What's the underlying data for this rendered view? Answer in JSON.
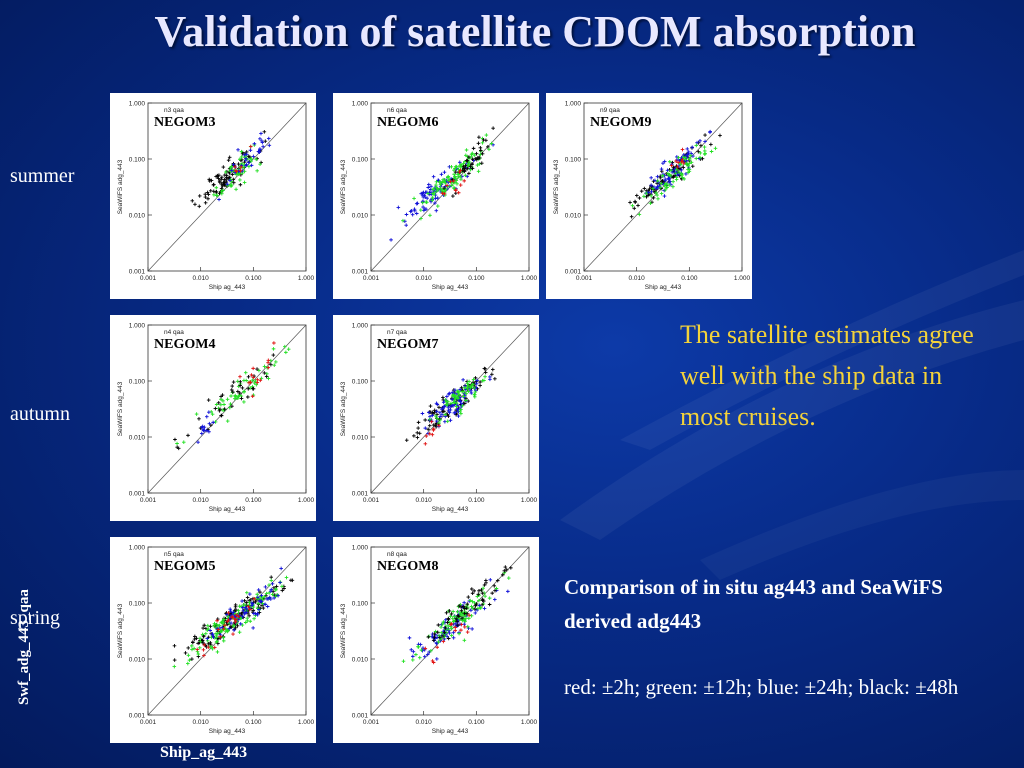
{
  "slide": {
    "title": "Validation of satellite CDOM absorption",
    "seasons": {
      "summer": "summer",
      "autumn": "autumn",
      "spring": "spring"
    },
    "conclusion": "The satellite estimates agree well with the ship data in most cruises.",
    "comparison_title": "Comparison of in situ ag443 and SeaWiFS derived adg443",
    "legend_text": "red: ±2h; green: ±12h; blue: ±24h; black: ±48h",
    "axis_y_label": "Swf_adg_443_qaa",
    "axis_x_label": "Ship_ag_443",
    "colors": {
      "background": "#072a86",
      "highlight": "#f3d23a",
      "red": "#e01010",
      "green": "#22e022",
      "blue": "#1010d8",
      "black": "#000000"
    }
  },
  "chart_data": [
    {
      "type": "scatter",
      "label": "NEGOM3",
      "subtitle": "n3 qaa",
      "season": "summer",
      "xlabel": "Ship ag_443",
      "ylabel": "SeaWiFS adg_443",
      "xscale": "log",
      "yscale": "log",
      "xlim": [
        0.001,
        1.0
      ],
      "ylim": [
        0.001,
        1.0
      ],
      "xticks": [
        "0.001",
        "0.010",
        "0.100",
        "1.000"
      ],
      "yticks": [
        "0.001",
        "0.010",
        "0.100",
        "1.000"
      ],
      "series": [
        {
          "name": "black",
          "color": "#000000",
          "center": [
            0.03,
            0.045
          ],
          "spread": [
            0.28,
            0.26
          ],
          "n": 90
        },
        {
          "name": "green",
          "color": "#22e022",
          "center": [
            0.05,
            0.06
          ],
          "spread": [
            0.2,
            0.2
          ],
          "n": 60
        },
        {
          "name": "blue",
          "color": "#1010d8",
          "center": [
            0.07,
            0.09
          ],
          "spread": [
            0.22,
            0.25
          ],
          "n": 35
        },
        {
          "name": "red",
          "color": "#e01010",
          "center": [
            0.06,
            0.07
          ],
          "spread": [
            0.1,
            0.1
          ],
          "n": 6
        }
      ]
    },
    {
      "type": "scatter",
      "label": "NEGOM6",
      "subtitle": "n6 qaa",
      "season": "summer",
      "xlabel": "Ship ag_443",
      "ylabel": "SeaWiFS adg_443",
      "xscale": "log",
      "yscale": "log",
      "xlim": [
        0.001,
        1.0
      ],
      "ylim": [
        0.001,
        1.0
      ],
      "xticks": [
        "0.001",
        "0.010",
        "0.100",
        "1.000"
      ],
      "yticks": [
        "0.001",
        "0.010",
        "0.100",
        "1.000"
      ],
      "series": [
        {
          "name": "blue",
          "color": "#1010d8",
          "center": [
            0.02,
            0.03
          ],
          "spread": [
            0.35,
            0.3
          ],
          "n": 90
        },
        {
          "name": "green",
          "color": "#22e022",
          "center": [
            0.04,
            0.05
          ],
          "spread": [
            0.3,
            0.3
          ],
          "n": 110
        },
        {
          "name": "black",
          "color": "#000000",
          "center": [
            0.08,
            0.1
          ],
          "spread": [
            0.2,
            0.25
          ],
          "n": 40
        },
        {
          "name": "red",
          "color": "#e01010",
          "center": [
            0.035,
            0.03
          ],
          "spread": [
            0.2,
            0.2
          ],
          "n": 12
        }
      ]
    },
    {
      "type": "scatter",
      "label": "NEGOM9",
      "subtitle": "n9 qaa",
      "season": "summer",
      "xlabel": "Ship ag_443",
      "ylabel": "SeaWiFS adg_443",
      "xscale": "log",
      "yscale": "log",
      "xlim": [
        0.001,
        1.0
      ],
      "ylim": [
        0.001,
        1.0
      ],
      "xticks": [
        "0.001",
        "0.010",
        "0.100",
        "1.000"
      ],
      "yticks": [
        "0.001",
        "0.010",
        "0.100",
        "1.000"
      ],
      "series": [
        {
          "name": "black",
          "color": "#000000",
          "center": [
            0.04,
            0.05
          ],
          "spread": [
            0.35,
            0.3
          ],
          "n": 80
        },
        {
          "name": "blue",
          "color": "#1010d8",
          "center": [
            0.05,
            0.06
          ],
          "spread": [
            0.35,
            0.35
          ],
          "n": 80
        },
        {
          "name": "green",
          "color": "#22e022",
          "center": [
            0.05,
            0.05
          ],
          "spread": [
            0.35,
            0.3
          ],
          "n": 70
        },
        {
          "name": "red",
          "color": "#e01010",
          "center": [
            0.06,
            0.08
          ],
          "spread": [
            0.15,
            0.15
          ],
          "n": 8
        }
      ]
    },
    {
      "type": "scatter",
      "label": "NEGOM4",
      "subtitle": "n4 qaa",
      "season": "autumn",
      "xlabel": "Ship ag_443",
      "ylabel": "SeaWiFS adg_443",
      "xscale": "log",
      "yscale": "log",
      "xlim": [
        0.001,
        1.0
      ],
      "ylim": [
        0.001,
        1.0
      ],
      "xticks": [
        "0.001",
        "0.010",
        "0.100",
        "1.000"
      ],
      "yticks": [
        "0.001",
        "0.010",
        "0.100",
        "1.000"
      ],
      "series": [
        {
          "name": "green",
          "color": "#22e022",
          "center": [
            0.05,
            0.06
          ],
          "spread": [
            0.45,
            0.4
          ],
          "n": 60
        },
        {
          "name": "black",
          "color": "#000000",
          "center": [
            0.04,
            0.05
          ],
          "spread": [
            0.4,
            0.35
          ],
          "n": 40
        },
        {
          "name": "red",
          "color": "#e01010",
          "center": [
            0.12,
            0.15
          ],
          "spread": [
            0.2,
            0.2
          ],
          "n": 14
        },
        {
          "name": "blue",
          "color": "#1010d8",
          "center": [
            0.012,
            0.013
          ],
          "spread": [
            0.08,
            0.08
          ],
          "n": 14
        }
      ]
    },
    {
      "type": "scatter",
      "label": "NEGOM7",
      "subtitle": "n7 qaa",
      "season": "autumn",
      "xlabel": "Ship ag_443",
      "ylabel": "SeaWiFS adg_443",
      "xscale": "log",
      "yscale": "log",
      "xlim": [
        0.001,
        1.0
      ],
      "ylim": [
        0.001,
        1.0
      ],
      "xticks": [
        "0.001",
        "0.010",
        "0.100",
        "1.000"
      ],
      "yticks": [
        "0.001",
        "0.010",
        "0.100",
        "1.000"
      ],
      "series": [
        {
          "name": "black",
          "color": "#000000",
          "center": [
            0.03,
            0.035
          ],
          "spread": [
            0.35,
            0.3
          ],
          "n": 90
        },
        {
          "name": "blue",
          "color": "#1010d8",
          "center": [
            0.035,
            0.04
          ],
          "spread": [
            0.3,
            0.25
          ],
          "n": 80
        },
        {
          "name": "green",
          "color": "#22e022",
          "center": [
            0.04,
            0.045
          ],
          "spread": [
            0.3,
            0.25
          ],
          "n": 60
        },
        {
          "name": "red",
          "color": "#e01010",
          "center": [
            0.015,
            0.014
          ],
          "spread": [
            0.1,
            0.1
          ],
          "n": 8
        }
      ]
    },
    {
      "type": "scatter",
      "label": "NEGOM5",
      "subtitle": "n5 qaa",
      "season": "spring",
      "xlabel": "Ship ag_443",
      "ylabel": "SeaWiFS adg_443",
      "xscale": "log",
      "yscale": "log",
      "xlim": [
        0.001,
        1.0
      ],
      "ylim": [
        0.001,
        1.0
      ],
      "xticks": [
        "0.001",
        "0.010",
        "0.100",
        "1.000"
      ],
      "yticks": [
        "0.001",
        "0.010",
        "0.100",
        "1.000"
      ],
      "series": [
        {
          "name": "black",
          "color": "#000000",
          "center": [
            0.04,
            0.05
          ],
          "spread": [
            0.5,
            0.4
          ],
          "n": 130
        },
        {
          "name": "green",
          "color": "#22e022",
          "center": [
            0.04,
            0.045
          ],
          "spread": [
            0.45,
            0.35
          ],
          "n": 130
        },
        {
          "name": "blue",
          "color": "#1010d8",
          "center": [
            0.07,
            0.07
          ],
          "spread": [
            0.4,
            0.3
          ],
          "n": 70
        },
        {
          "name": "red",
          "color": "#e01010",
          "center": [
            0.04,
            0.05
          ],
          "spread": [
            0.3,
            0.3
          ],
          "n": 25
        }
      ]
    },
    {
      "type": "scatter",
      "label": "NEGOM8",
      "subtitle": "n8 qaa",
      "season": "spring",
      "xlabel": "Ship ag_443",
      "ylabel": "SeaWiFS adg_443",
      "xscale": "log",
      "yscale": "log",
      "xlim": [
        0.001,
        1.0
      ],
      "ylim": [
        0.001,
        1.0
      ],
      "xticks": [
        "0.001",
        "0.010",
        "0.100",
        "1.000"
      ],
      "yticks": [
        "0.001",
        "0.010",
        "0.100",
        "1.000"
      ],
      "series": [
        {
          "name": "blue",
          "color": "#1010d8",
          "center": [
            0.03,
            0.035
          ],
          "spread": [
            0.35,
            0.3
          ],
          "n": 80
        },
        {
          "name": "green",
          "color": "#22e022",
          "center": [
            0.05,
            0.06
          ],
          "spread": [
            0.35,
            0.3
          ],
          "n": 90
        },
        {
          "name": "black",
          "color": "#000000",
          "center": [
            0.07,
            0.09
          ],
          "spread": [
            0.4,
            0.4
          ],
          "n": 60
        },
        {
          "name": "red",
          "color": "#e01010",
          "center": [
            0.03,
            0.03
          ],
          "spread": [
            0.25,
            0.25
          ],
          "n": 14
        }
      ]
    }
  ]
}
